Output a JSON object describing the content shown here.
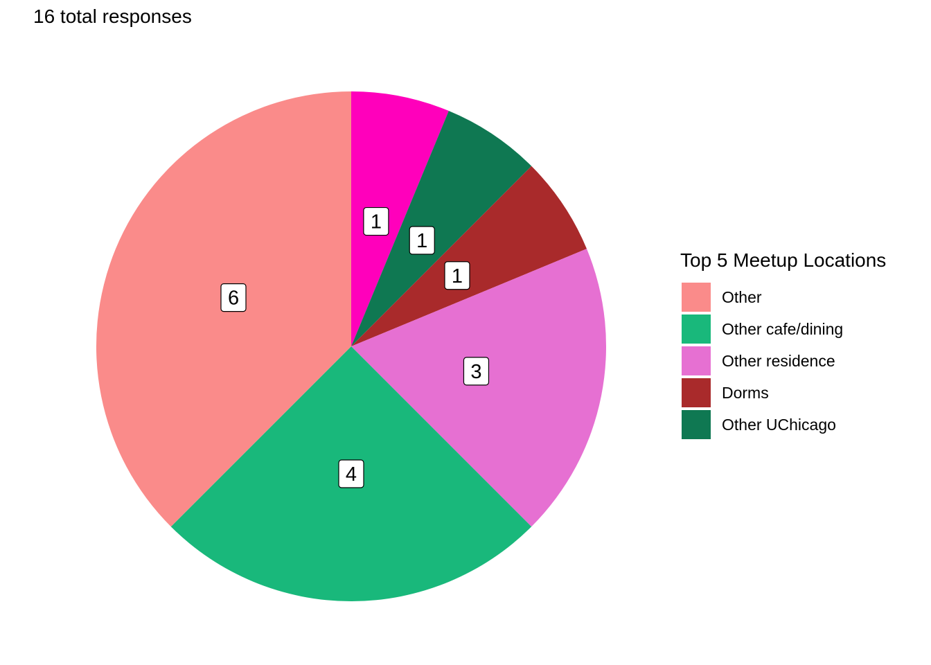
{
  "chart_data": {
    "type": "pie",
    "title": "16 total responses",
    "total": 16,
    "legend_title": "Top 5 Meetup Locations",
    "legend_position": "right",
    "legend": [
      {
        "name": "Other",
        "color": "#fa8b8a"
      },
      {
        "name": "Other cafe/dining",
        "color": "#19b87b"
      },
      {
        "name": "Other residence",
        "color": "#e670d2"
      },
      {
        "name": "Dorms",
        "color": "#a92a2b"
      },
      {
        "name": "Other UChicago",
        "color": "#0f7852"
      }
    ],
    "slices": [
      {
        "name": "Other UChicago",
        "value": 1,
        "color": "#ff00bb",
        "label": "1"
      },
      {
        "name": "Other UChicago",
        "value": 1,
        "color": "#0f7852",
        "label": "1"
      },
      {
        "name": "Dorms",
        "value": 1,
        "color": "#a92a2b",
        "label": "1"
      },
      {
        "name": "Other residence",
        "value": 3,
        "color": "#e670d2",
        "label": "3"
      },
      {
        "name": "Other cafe/dining",
        "value": 4,
        "color": "#19b87b",
        "label": "4"
      },
      {
        "name": "Other",
        "value": 6,
        "color": "#fa8b8a",
        "label": "6"
      }
    ]
  }
}
